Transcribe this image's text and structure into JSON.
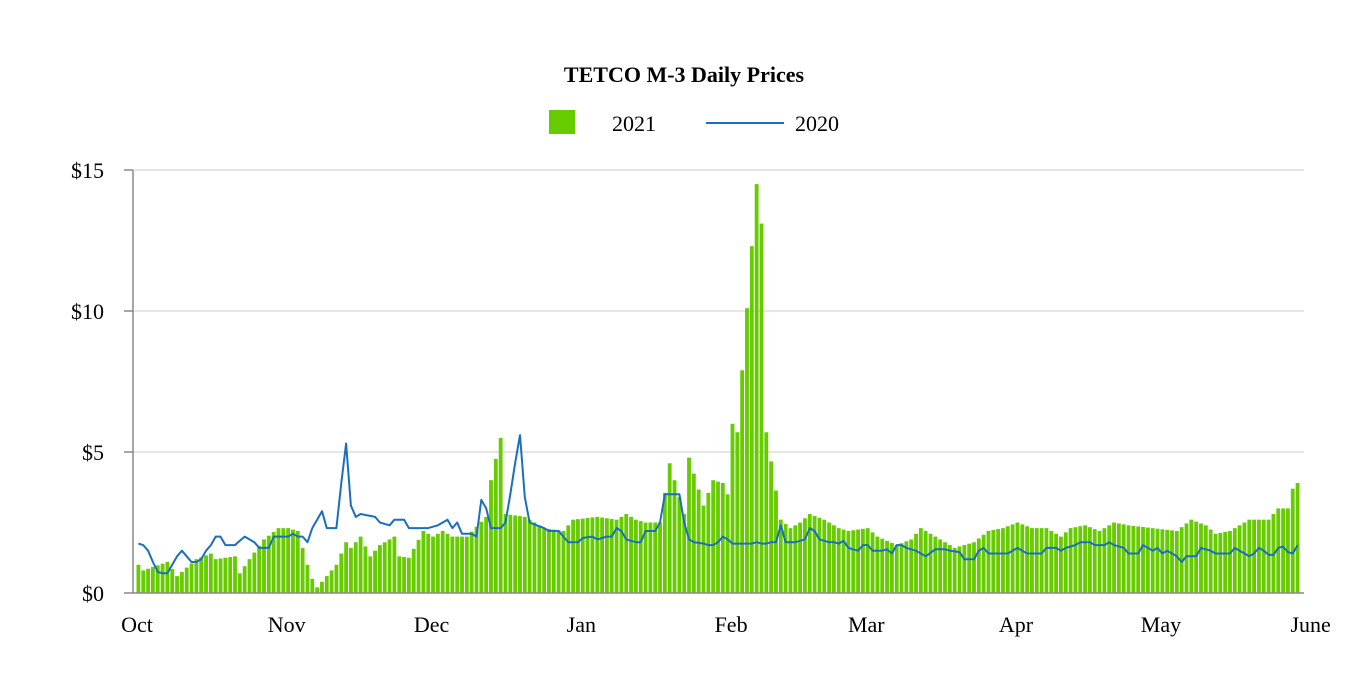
{
  "chart_data": {
    "type": "bar+line",
    "title": "TETCO M-3 Daily Prices",
    "xlabel": "",
    "ylabel": "",
    "ylim": [
      0,
      15
    ],
    "y_ticks": [
      0,
      5,
      10,
      15
    ],
    "y_tick_labels": [
      "$0",
      "$5",
      "$10",
      "$15"
    ],
    "x_tick_labels": [
      "Oct",
      "Nov",
      "Dec",
      "Jan",
      "Feb",
      "Mar",
      "Apr",
      "May",
      "June"
    ],
    "month_lengths": [
      31,
      30,
      31,
      31,
      28,
      31,
      30,
      31,
      30
    ],
    "grid": true,
    "legend_position": "top-center",
    "colors": {
      "bar": "#66cc00",
      "line": "#1a6fbd",
      "grid": "#dddddd",
      "axis": "#888888"
    },
    "series": [
      {
        "name": "2021",
        "kind": "bar",
        "anchors": [
          [
            0,
            1.0
          ],
          [
            1,
            0.8
          ],
          [
            6,
            1.1
          ],
          [
            8,
            0.6
          ],
          [
            12,
            1.2
          ],
          [
            15,
            1.4
          ],
          [
            16,
            1.2
          ],
          [
            20,
            1.3
          ],
          [
            21,
            0.7
          ],
          [
            23,
            1.2
          ],
          [
            26,
            1.9
          ],
          [
            29,
            2.3
          ],
          [
            31,
            2.3
          ],
          [
            33,
            2.2
          ],
          [
            35,
            1.0
          ],
          [
            36,
            0.5
          ],
          [
            37,
            0.2
          ],
          [
            41,
            1.0
          ],
          [
            43,
            1.8
          ],
          [
            44,
            1.6
          ],
          [
            46,
            2.0
          ],
          [
            48,
            1.3
          ],
          [
            50,
            1.7
          ],
          [
            53,
            2.0
          ],
          [
            54,
            1.3
          ],
          [
            56,
            1.25
          ],
          [
            59,
            2.2
          ],
          [
            61,
            2.0
          ],
          [
            63,
            2.2
          ],
          [
            65,
            2.0
          ],
          [
            68,
            2.0
          ],
          [
            72,
            2.7
          ],
          [
            73,
            4.0
          ],
          [
            75,
            5.5
          ],
          [
            76,
            2.8
          ],
          [
            80,
            2.7
          ],
          [
            82,
            2.5
          ],
          [
            84,
            2.3
          ],
          [
            88,
            2.2
          ],
          [
            90,
            2.6
          ],
          [
            95,
            2.7
          ],
          [
            99,
            2.6
          ],
          [
            101,
            2.8
          ],
          [
            103,
            2.6
          ],
          [
            105,
            2.5
          ],
          [
            108,
            2.5
          ],
          [
            110,
            4.6
          ],
          [
            113,
            2.8
          ],
          [
            114,
            4.8
          ],
          [
            117,
            3.1
          ],
          [
            119,
            4.0
          ],
          [
            121,
            3.9
          ],
          [
            122,
            3.5
          ],
          [
            123,
            6.0
          ],
          [
            124,
            5.7
          ],
          [
            128,
            14.5
          ],
          [
            129,
            13.1
          ],
          [
            130,
            5.7
          ],
          [
            133,
            2.6
          ],
          [
            135,
            2.3
          ],
          [
            137,
            2.5
          ],
          [
            139,
            2.8
          ],
          [
            142,
            2.6
          ],
          [
            145,
            2.3
          ],
          [
            147,
            2.2
          ],
          [
            151,
            2.3
          ],
          [
            153,
            2.0
          ],
          [
            157,
            1.7
          ],
          [
            160,
            1.9
          ],
          [
            162,
            2.3
          ],
          [
            165,
            2.0
          ],
          [
            169,
            1.6
          ],
          [
            173,
            1.8
          ],
          [
            176,
            2.2
          ],
          [
            179,
            2.3
          ],
          [
            182,
            2.5
          ],
          [
            185,
            2.3
          ],
          [
            188,
            2.3
          ],
          [
            191,
            2.0
          ],
          [
            193,
            2.3
          ],
          [
            196,
            2.4
          ],
          [
            199,
            2.2
          ],
          [
            202,
            2.5
          ],
          [
            205,
            2.4
          ],
          [
            210,
            2.3
          ],
          [
            215,
            2.2
          ],
          [
            218,
            2.6
          ],
          [
            221,
            2.4
          ],
          [
            223,
            2.1
          ],
          [
            226,
            2.2
          ],
          [
            228,
            2.4
          ],
          [
            230,
            2.6
          ],
          [
            234,
            2.6
          ],
          [
            236,
            3.0
          ],
          [
            238,
            3.0
          ],
          [
            239,
            3.7
          ],
          [
            240,
            3.9
          ]
        ]
      },
      {
        "name": "2020",
        "kind": "line",
        "anchors": [
          [
            0,
            1.75
          ],
          [
            1,
            1.7
          ],
          [
            2,
            1.5
          ],
          [
            3,
            1.1
          ],
          [
            4,
            0.75
          ],
          [
            5,
            0.7
          ],
          [
            6,
            0.7
          ],
          [
            7,
            1.0
          ],
          [
            8,
            1.3
          ],
          [
            9,
            1.5
          ],
          [
            10,
            1.3
          ],
          [
            11,
            1.1
          ],
          [
            12,
            1.1
          ],
          [
            13,
            1.2
          ],
          [
            14,
            1.5
          ],
          [
            15,
            1.7
          ],
          [
            16,
            2.0
          ],
          [
            17,
            2.0
          ],
          [
            18,
            1.7
          ],
          [
            20,
            1.7
          ],
          [
            22,
            2.0
          ],
          [
            24,
            1.8
          ],
          [
            25,
            1.6
          ],
          [
            27,
            1.6
          ],
          [
            28,
            2.0
          ],
          [
            31,
            2.0
          ],
          [
            32,
            2.1
          ],
          [
            33,
            2.0
          ],
          [
            34,
            2.0
          ],
          [
            35,
            1.8
          ],
          [
            36,
            2.3
          ],
          [
            38,
            2.9
          ],
          [
            39,
            2.3
          ],
          [
            41,
            2.3
          ],
          [
            42,
            3.9
          ],
          [
            43,
            5.3
          ],
          [
            44,
            3.1
          ],
          [
            45,
            2.7
          ],
          [
            46,
            2.8
          ],
          [
            49,
            2.7
          ],
          [
            50,
            2.5
          ],
          [
            52,
            2.4
          ],
          [
            53,
            2.6
          ],
          [
            55,
            2.6
          ],
          [
            56,
            2.3
          ],
          [
            58,
            2.3
          ],
          [
            60,
            2.3
          ],
          [
            62,
            2.4
          ],
          [
            64,
            2.6
          ],
          [
            65,
            2.3
          ],
          [
            66,
            2.5
          ],
          [
            67,
            2.1
          ],
          [
            69,
            2.1
          ],
          [
            70,
            2.0
          ],
          [
            71,
            3.3
          ],
          [
            72,
            3.0
          ],
          [
            73,
            2.3
          ],
          [
            75,
            2.3
          ],
          [
            76,
            2.5
          ],
          [
            77,
            3.5
          ],
          [
            78,
            4.6
          ],
          [
            79,
            5.6
          ],
          [
            80,
            3.4
          ],
          [
            81,
            2.5
          ],
          [
            84,
            2.3
          ],
          [
            85,
            2.2
          ],
          [
            87,
            2.2
          ],
          [
            88,
            2.0
          ],
          [
            89,
            1.8
          ],
          [
            91,
            1.8
          ],
          [
            92,
            1.95
          ],
          [
            94,
            2.0
          ],
          [
            95,
            1.9
          ],
          [
            97,
            2.0
          ],
          [
            98,
            2.0
          ],
          [
            99,
            2.3
          ],
          [
            100,
            2.2
          ],
          [
            101,
            1.9
          ],
          [
            103,
            1.8
          ],
          [
            104,
            1.8
          ],
          [
            105,
            2.2
          ],
          [
            107,
            2.2
          ],
          [
            108,
            2.5
          ],
          [
            109,
            3.5
          ],
          [
            112,
            3.5
          ],
          [
            113,
            2.5
          ],
          [
            114,
            1.9
          ],
          [
            115,
            1.8
          ],
          [
            117,
            1.75
          ],
          [
            118,
            1.7
          ],
          [
            119,
            1.7
          ],
          [
            120,
            1.8
          ],
          [
            121,
            2.0
          ],
          [
            122,
            1.9
          ],
          [
            123,
            1.75
          ],
          [
            127,
            1.75
          ],
          [
            128,
            1.8
          ],
          [
            129,
            1.75
          ],
          [
            130,
            1.75
          ],
          [
            131,
            1.8
          ],
          [
            132,
            1.8
          ],
          [
            133,
            2.4
          ],
          [
            134,
            1.8
          ],
          [
            136,
            1.8
          ],
          [
            138,
            1.9
          ],
          [
            139,
            2.3
          ],
          [
            140,
            2.2
          ],
          [
            141,
            1.9
          ],
          [
            143,
            1.8
          ],
          [
            144,
            1.8
          ],
          [
            145,
            1.75
          ],
          [
            146,
            1.85
          ],
          [
            147,
            1.6
          ],
          [
            149,
            1.5
          ],
          [
            150,
            1.7
          ],
          [
            151,
            1.7
          ],
          [
            152,
            1.5
          ],
          [
            154,
            1.5
          ],
          [
            155,
            1.55
          ],
          [
            156,
            1.4
          ],
          [
            157,
            1.7
          ],
          [
            158,
            1.7
          ],
          [
            159,
            1.6
          ],
          [
            161,
            1.5
          ],
          [
            162,
            1.4
          ],
          [
            163,
            1.3
          ],
          [
            165,
            1.55
          ],
          [
            167,
            1.55
          ],
          [
            168,
            1.5
          ],
          [
            170,
            1.45
          ],
          [
            171,
            1.2
          ],
          [
            173,
            1.2
          ],
          [
            174,
            1.5
          ],
          [
            175,
            1.6
          ],
          [
            176,
            1.4
          ],
          [
            180,
            1.4
          ],
          [
            181,
            1.5
          ],
          [
            182,
            1.6
          ],
          [
            183,
            1.5
          ],
          [
            184,
            1.4
          ],
          [
            187,
            1.4
          ],
          [
            188,
            1.6
          ],
          [
            190,
            1.6
          ],
          [
            191,
            1.5
          ],
          [
            192,
            1.6
          ],
          [
            194,
            1.7
          ],
          [
            195,
            1.8
          ],
          [
            197,
            1.8
          ],
          [
            198,
            1.7
          ],
          [
            200,
            1.7
          ],
          [
            201,
            1.8
          ],
          [
            202,
            1.7
          ],
          [
            204,
            1.6
          ],
          [
            205,
            1.4
          ],
          [
            207,
            1.4
          ],
          [
            208,
            1.7
          ],
          [
            209,
            1.6
          ],
          [
            210,
            1.5
          ],
          [
            211,
            1.6
          ],
          [
            212,
            1.4
          ],
          [
            213,
            1.5
          ],
          [
            214,
            1.4
          ],
          [
            215,
            1.3
          ],
          [
            216,
            1.1
          ],
          [
            217,
            1.3
          ],
          [
            219,
            1.3
          ],
          [
            220,
            1.6
          ],
          [
            222,
            1.5
          ],
          [
            223,
            1.4
          ],
          [
            225,
            1.4
          ],
          [
            226,
            1.4
          ],
          [
            227,
            1.6
          ],
          [
            228,
            1.5
          ],
          [
            229,
            1.4
          ],
          [
            230,
            1.3
          ],
          [
            231,
            1.4
          ],
          [
            232,
            1.6
          ],
          [
            233,
            1.5
          ],
          [
            234,
            1.35
          ],
          [
            235,
            1.35
          ],
          [
            236,
            1.6
          ],
          [
            237,
            1.65
          ],
          [
            238,
            1.45
          ],
          [
            239,
            1.4
          ],
          [
            240,
            1.7
          ]
        ]
      }
    ],
    "days": 241
  }
}
